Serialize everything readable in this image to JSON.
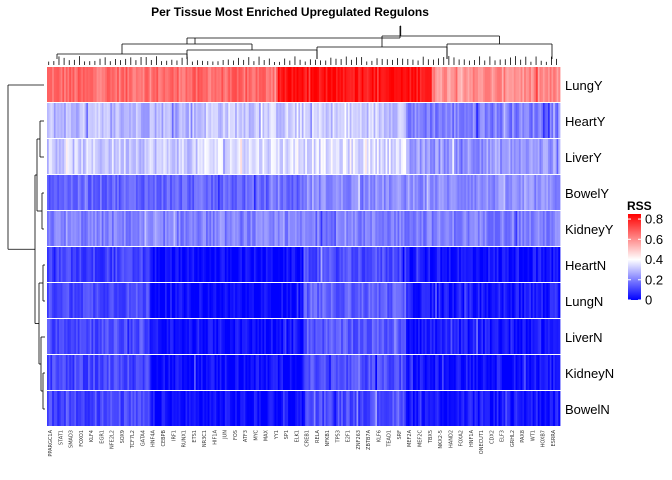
{
  "chart_data": {
    "type": "heatmap",
    "title": "Per Tissue Most Enriched Upregulated Regulons",
    "rows": [
      "LungY",
      "HeartY",
      "LiverY",
      "BowelY",
      "KidneyY",
      "HeartN",
      "LungN",
      "LiverN",
      "KidneyN",
      "BowelN"
    ],
    "column_count": 300,
    "column_labels": [
      "PPARGC1A",
      "STAT1",
      "SMAD3",
      "FOXO1",
      "KLF4",
      "EGR1",
      "NFE2L2",
      "SOX9",
      "TCF7L2",
      "GATA4",
      "HNF4A",
      "CEBPB",
      "IRF1",
      "RUNX1",
      "ETS1",
      "NR3C1",
      "HIF1A",
      "JUN",
      "FOS",
      "ATF3",
      "MYC",
      "MAX",
      "YY1",
      "SP1",
      "ELK1",
      "CREB1",
      "RELA",
      "NFKB1",
      "TP53",
      "E2F1",
      "ZNF263",
      "ZBTB7A",
      "KLF6",
      "TEAD1",
      "SRF",
      "MEF2A",
      "MEF2C",
      "TBX5",
      "NKX2-5",
      "HAND2",
      "FOXA2",
      "HNF1A",
      "ONECUT1",
      "CDX2",
      "ELF3",
      "GRHL2",
      "PAX8",
      "WT1",
      "HOXB7",
      "ESRRA"
    ],
    "value_range": [
      0,
      0.85
    ],
    "legend": {
      "title": "RSS",
      "ticks": [
        0.8,
        0.6,
        0.4,
        0.2,
        0
      ],
      "tick_labels": [
        "0.8",
        "0.6",
        "0.4",
        "0.2",
        "0"
      ],
      "placement": "right"
    },
    "color_scale": {
      "low": "#0000ff",
      "mid": "#ffffff",
      "high": "#ff0000"
    },
    "row_profiles": [
      {
        "row": "LungY",
        "base": 0.62,
        "segments": [
          [
            0,
            0.45,
            0.66
          ],
          [
            0.45,
            0.75,
            0.82
          ],
          [
            0.75,
            1.0,
            0.6
          ]
        ],
        "spread": 0.06
      },
      {
        "row": "HeartY",
        "base": 0.27,
        "segments": [
          [
            0,
            0.3,
            0.29
          ],
          [
            0.3,
            0.7,
            0.32
          ],
          [
            0.7,
            1.0,
            0.2
          ]
        ],
        "spread": 0.06
      },
      {
        "row": "LiverY",
        "base": 0.3,
        "segments": [
          [
            0,
            0.3,
            0.32
          ],
          [
            0.3,
            0.7,
            0.35
          ],
          [
            0.7,
            1.0,
            0.24
          ]
        ],
        "spread": 0.06
      },
      {
        "row": "BowelY",
        "base": 0.18,
        "segments": [
          [
            0,
            0.5,
            0.16
          ],
          [
            0.5,
            1.0,
            0.22
          ]
        ],
        "spread": 0.05
      },
      {
        "row": "KidneyY",
        "base": 0.2,
        "segments": [
          [
            0,
            0.5,
            0.2
          ],
          [
            0.5,
            1.0,
            0.2
          ]
        ],
        "spread": 0.05
      },
      {
        "row": "HeartN",
        "base": 0.08,
        "segments": [
          [
            0,
            0.2,
            0.1
          ],
          [
            0.2,
            0.5,
            0.01
          ],
          [
            0.5,
            0.7,
            0.12
          ],
          [
            0.7,
            1.0,
            0.03
          ]
        ],
        "spread": 0.05
      },
      {
        "row": "LungN",
        "base": 0.1,
        "segments": [
          [
            0,
            0.2,
            0.12
          ],
          [
            0.2,
            0.5,
            0.01
          ],
          [
            0.5,
            0.7,
            0.15
          ],
          [
            0.7,
            1.0,
            0.04
          ]
        ],
        "spread": 0.05
      },
      {
        "row": "LiverN",
        "base": 0.1,
        "segments": [
          [
            0,
            0.2,
            0.12
          ],
          [
            0.2,
            0.5,
            0.02
          ],
          [
            0.5,
            0.7,
            0.14
          ],
          [
            0.7,
            1.0,
            0.04
          ]
        ],
        "spread": 0.05
      },
      {
        "row": "KidneyN",
        "base": 0.09,
        "segments": [
          [
            0,
            0.2,
            0.11
          ],
          [
            0.2,
            0.5,
            0.02
          ],
          [
            0.5,
            0.7,
            0.12
          ],
          [
            0.7,
            1.0,
            0.03
          ]
        ],
        "spread": 0.05
      },
      {
        "row": "BowelN",
        "base": 0.09,
        "segments": [
          [
            0,
            0.2,
            0.11
          ],
          [
            0.2,
            0.5,
            0.02
          ],
          [
            0.5,
            0.7,
            0.12
          ],
          [
            0.7,
            1.0,
            0.04
          ]
        ],
        "spread": 0.05
      }
    ],
    "row_dendrogram": true,
    "column_dendrogram": true,
    "grid": false
  }
}
